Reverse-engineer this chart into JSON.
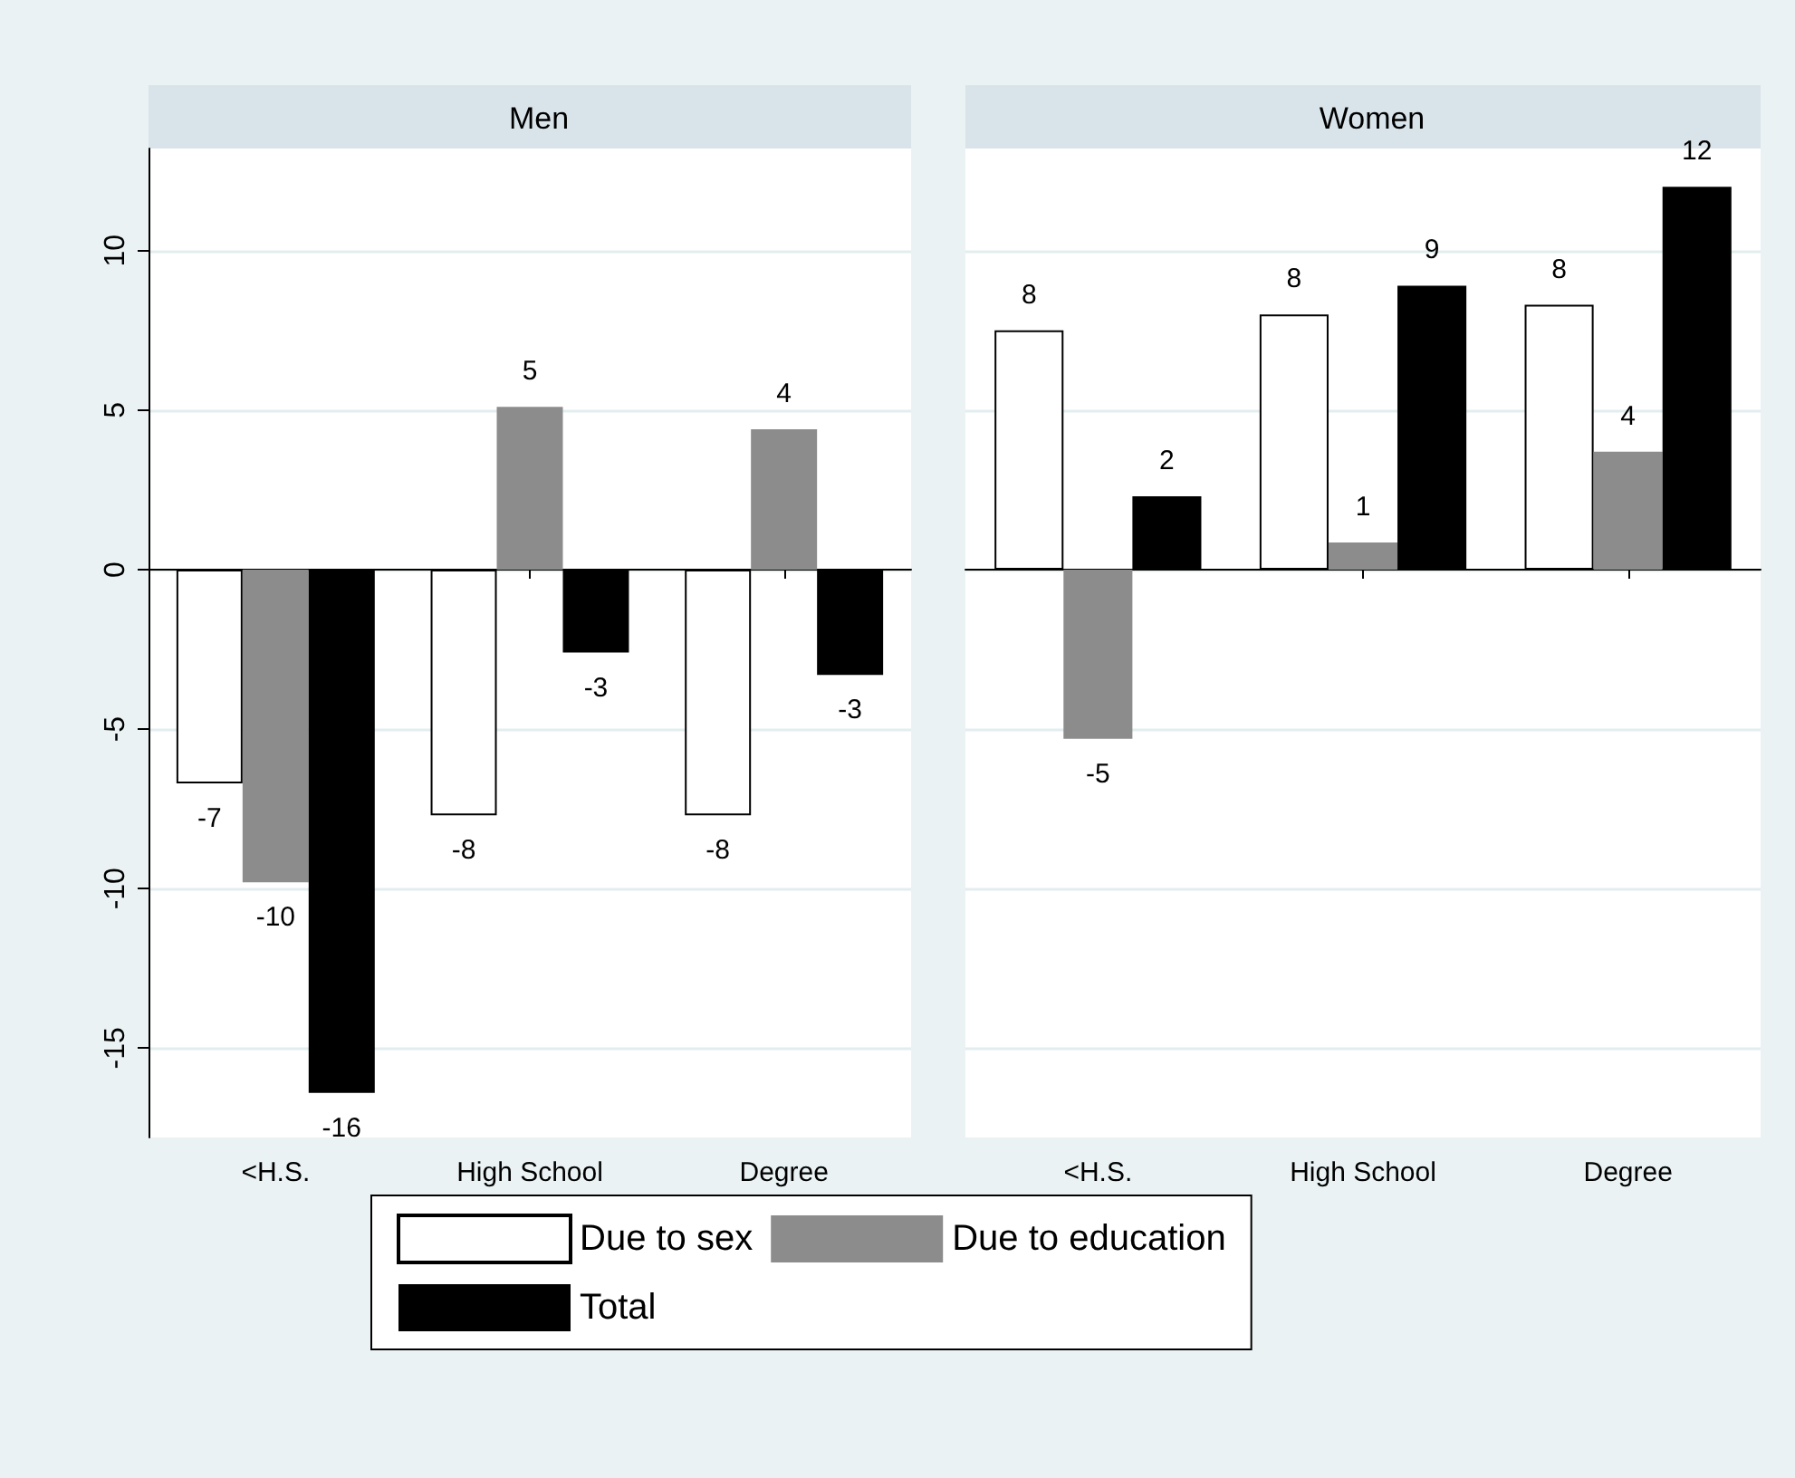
{
  "chart_data": [
    {
      "type": "bar",
      "title": "Men",
      "categories": [
        "<H.S.",
        "High School",
        "Degree"
      ],
      "series": [
        {
          "name": "Due to sex",
          "color": "#ffffff",
          "values": [
            -6.7,
            -7.7,
            -7.7
          ],
          "value_labels": [
            "-7",
            "-8",
            "-8"
          ]
        },
        {
          "name": "Due to education",
          "color": "#8c8c8c",
          "values": [
            -9.8,
            5.1,
            4.4
          ],
          "value_labels": [
            "-10",
            "5",
            "4"
          ]
        },
        {
          "name": "Total",
          "color": "#000000",
          "values": [
            -16.4,
            -2.6,
            -3.3
          ],
          "value_labels": [
            "-16",
            "-3",
            "-3"
          ]
        }
      ],
      "ylim": [
        -17.8,
        13.2
      ],
      "yticks": [
        -15,
        -10,
        -5,
        0,
        5,
        10
      ],
      "grid": "y",
      "legend": "bottom"
    },
    {
      "type": "bar",
      "title": "Women",
      "categories": [
        "<H.S.",
        "High School",
        "Degree"
      ],
      "series": [
        {
          "color": "#ffffff",
          "values": [
            7.5,
            8.0,
            8.3
          ],
          "value_labels": [
            "8",
            "8",
            "8"
          ]
        },
        {
          "color": "#8c8c8c",
          "values": [
            -5.3,
            0.85,
            3.7
          ],
          "value_labels": [
            "-5",
            "1",
            "4"
          ]
        },
        {
          "color": "#000000",
          "values": [
            2.3,
            8.9,
            12.0
          ],
          "value_labels": [
            "2",
            "9",
            "12"
          ]
        }
      ],
      "ylim": [
        -17.8,
        13.2
      ],
      "yticks": [
        -15,
        -10,
        -5,
        0,
        5,
        10
      ],
      "grid": "y",
      "tick_labels": "x"
    }
  ]
}
